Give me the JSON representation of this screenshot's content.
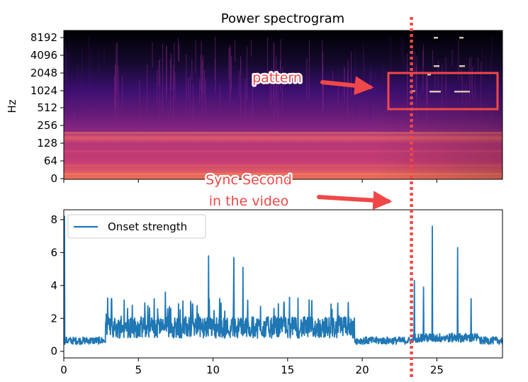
{
  "chart_data": [
    {
      "type": "heatmap",
      "title": "Power spectrogram",
      "xlabel": "",
      "ylabel": "Hz",
      "y_scale": "log",
      "y_tick_labels": [
        "0",
        "64",
        "128",
        "256",
        "512",
        "1024",
        "2048",
        "4096",
        "8192"
      ],
      "x_ticks": [
        0,
        5,
        10,
        15,
        20,
        25
      ],
      "xlim": [
        0,
        29.4
      ],
      "colormap": "magma",
      "annotations": [
        {
          "text": "pattern",
          "color": "#f04848"
        }
      ],
      "highlight_box_color": "#f04848"
    },
    {
      "type": "line",
      "xlabel": "",
      "ylabel": "",
      "xlim": [
        0,
        29.4
      ],
      "ylim": [
        -0.4,
        8.6
      ],
      "x_ticks": [
        0,
        5,
        10,
        15,
        20,
        25
      ],
      "y_ticks": [
        0,
        2,
        4,
        6,
        8
      ],
      "legend_position": "top-left",
      "series": [
        {
          "name": "Onset strength",
          "color": "#1f77b4",
          "peaks": [
            {
              "x": 0.05,
              "y": 8.2
            },
            {
              "x": 3.2,
              "y": 3.2
            },
            {
              "x": 6.8,
              "y": 3.6
            },
            {
              "x": 9.7,
              "y": 5.8
            },
            {
              "x": 11.4,
              "y": 5.7
            },
            {
              "x": 12.0,
              "y": 5.1
            },
            {
              "x": 23.5,
              "y": 4.3
            },
            {
              "x": 24.1,
              "y": 3.9
            },
            {
              "x": 24.7,
              "y": 7.6
            },
            {
              "x": 26.4,
              "y": 6.3
            },
            {
              "x": 27.3,
              "y": 3.2
            }
          ]
        }
      ],
      "annotations": [
        {
          "lines": [
            "Sync Second",
            "in the video"
          ],
          "color": "#f04848"
        }
      ],
      "sync_marker_x": 23.3,
      "sync_marker_color": "#f04848"
    }
  ]
}
